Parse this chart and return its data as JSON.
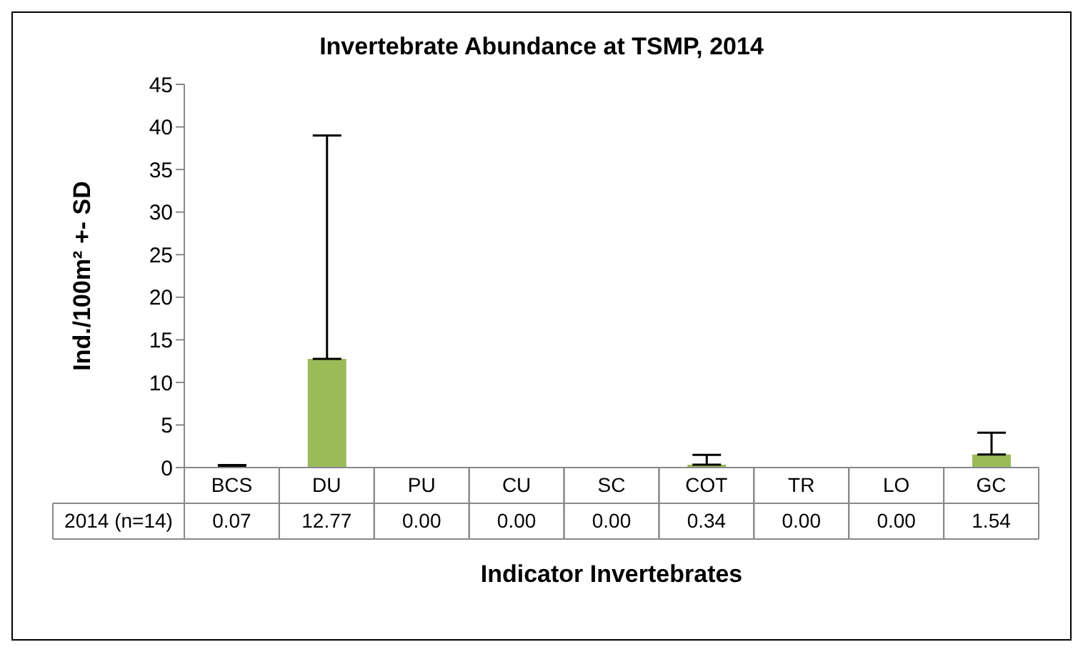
{
  "chart_data": {
    "type": "bar",
    "title": "Invertebrate Abundance at TSMP, 2014",
    "xlabel": "Indicator Invertebrates",
    "ylabel": "Ind./100m² +- SD",
    "categories": [
      "BCS",
      "DU",
      "PU",
      "CU",
      "SC",
      "COT",
      "TR",
      "LO",
      "GC"
    ],
    "series": [
      {
        "name": "2014 (n=14)",
        "color": "#9bbb59",
        "values": [
          0.07,
          12.77,
          0,
          0,
          0,
          0.34,
          0,
          0,
          1.54
        ],
        "value_labels": [
          "0.07",
          "12.77",
          "0.00",
          "0.00",
          "0.00",
          "0.34",
          "0.00",
          "0.00",
          "1.54"
        ],
        "errors": [
          [
            0.07,
            0.3
          ],
          [
            12.77,
            39
          ],
          null,
          null,
          null,
          [
            0.34,
            1.5
          ],
          null,
          null,
          [
            1.54,
            4.1
          ]
        ]
      }
    ],
    "ylim": [
      0,
      45
    ],
    "yticks": [
      0,
      5,
      10,
      15,
      20,
      25,
      30,
      35,
      40,
      45
    ],
    "grid": false,
    "legend": "bottom"
  }
}
